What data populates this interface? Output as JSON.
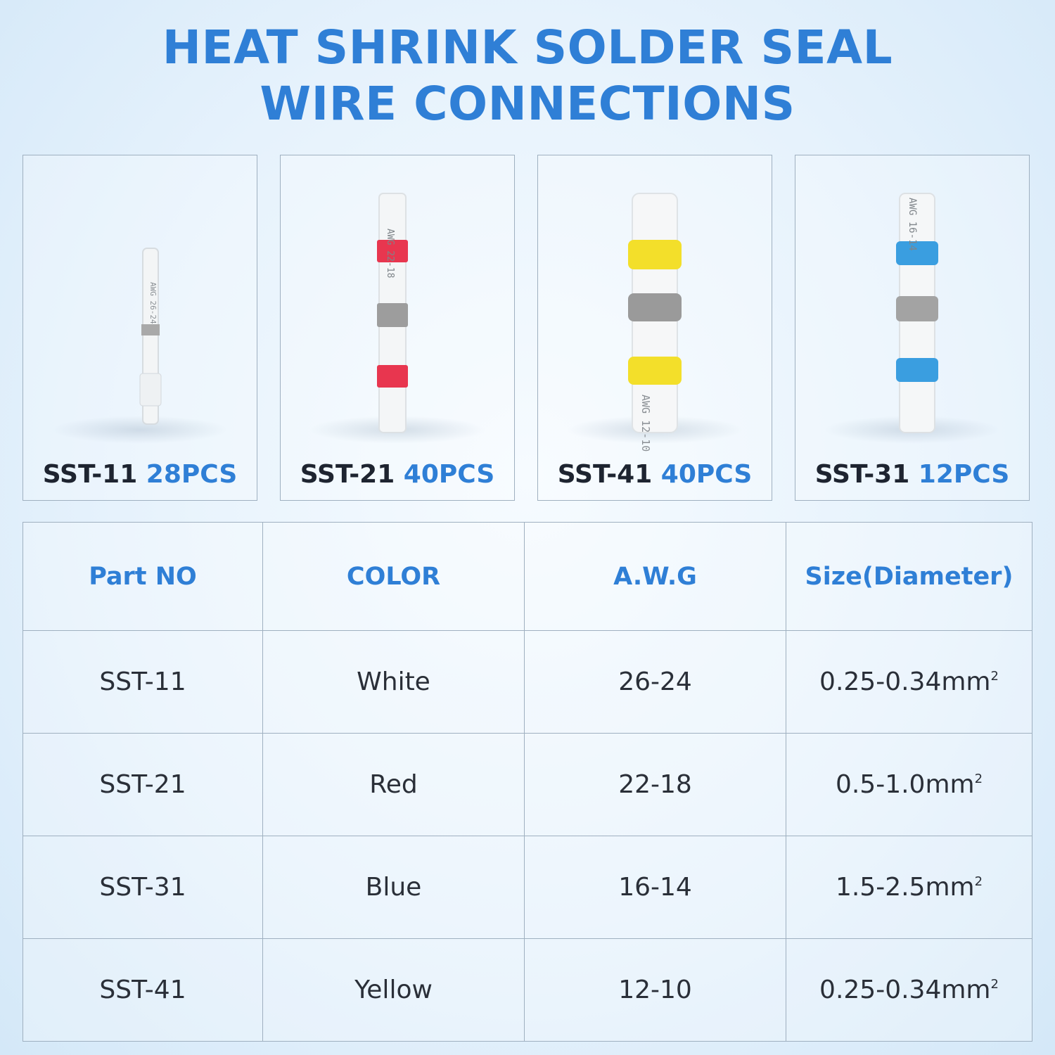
{
  "title": {
    "line1": "HEAT SHRINK SOLDER SEAL",
    "line2": "WIRE CONNECTIONS"
  },
  "products": [
    {
      "part": "SST-11",
      "qty": "28PCS",
      "band_color": "#b8b8b8",
      "end_color": "#dfe3e6",
      "tube_text": "AWG 26-24"
    },
    {
      "part": "SST-21",
      "qty": "40PCS",
      "band_color": "#e8364f",
      "end_color": "#e8364f",
      "tube_text": "AWG 22-18"
    },
    {
      "part": "SST-41",
      "qty": "40PCS",
      "band_color": "#f3df2a",
      "end_color": "#f3df2a",
      "tube_text": "AWG 12-10"
    },
    {
      "part": "SST-31",
      "qty": "12PCS",
      "band_color": "#3a9ee0",
      "end_color": "#3a9ee0",
      "tube_text": "AWG 16-14"
    }
  ],
  "table": {
    "headers": [
      "Part NO",
      "COLOR",
      "A.W.G",
      "Size(Diameter)"
    ],
    "rows": [
      {
        "part": "SST-11",
        "color": "White",
        "awg": "26-24",
        "size": "0.25-0.34mm",
        "unit_sup": "2"
      },
      {
        "part": "SST-21",
        "color": "Red",
        "awg": "22-18",
        "size": "0.5-1.0mm",
        "unit_sup": "2"
      },
      {
        "part": "SST-31",
        "color": "Blue",
        "awg": "16-14",
        "size": "1.5-2.5mm",
        "unit_sup": "2"
      },
      {
        "part": "SST-41",
        "color": "Yellow",
        "awg": "12-10",
        "size": "0.25-0.34mm",
        "unit_sup": "2"
      }
    ]
  },
  "colors": {
    "accent": "#2f7fd6",
    "text": "#1e2430",
    "border": "#9fb0c0",
    "solder_band": "#9a9a9a"
  }
}
